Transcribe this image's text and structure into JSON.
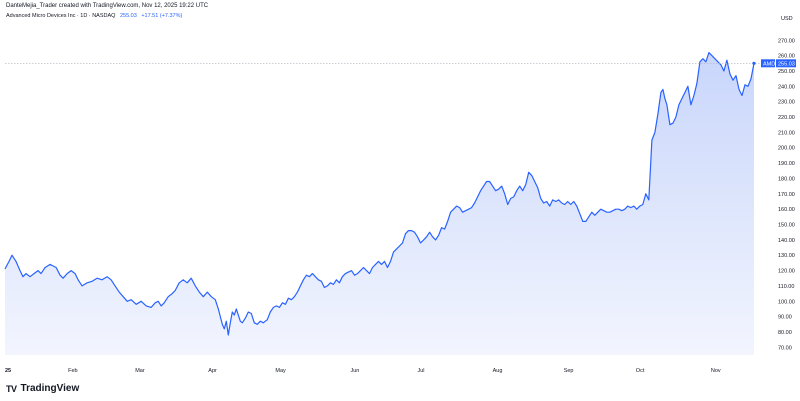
{
  "header": {
    "credit": "DanteMejia_Trader created with TradingView.com, Nov 12, 2025 19:22 UTC"
  },
  "legend": {
    "symbol_line": "Advanced Micro Devices Inc · 1D · NASDAQ",
    "last_price": "255.03",
    "change": "+17.51 (+7.37%)"
  },
  "currency": "USD",
  "brand": {
    "logo": "TV",
    "name": "TradingView"
  },
  "colors": {
    "line": "#2962ff",
    "fill_top": "#c9d6fb",
    "fill_bottom": "#f2f5fe",
    "axis_text": "#131722",
    "price_label_bg": "#2962ff"
  },
  "chart_data": {
    "type": "area",
    "series": [
      {
        "name": "AMD",
        "points": [
          [
            0,
            121
          ],
          [
            4,
            126
          ],
          [
            7,
            130
          ],
          [
            11,
            126
          ],
          [
            15,
            120
          ],
          [
            18,
            116
          ],
          [
            21,
            118
          ],
          [
            25,
            116
          ],
          [
            29,
            118
          ],
          [
            33,
            120
          ],
          [
            36,
            118
          ],
          [
            40,
            122
          ],
          [
            45,
            124
          ],
          [
            51,
            122
          ],
          [
            55,
            117
          ],
          [
            58,
            115
          ],
          [
            62,
            118
          ],
          [
            66,
            120
          ],
          [
            70,
            118
          ],
          [
            73,
            114
          ],
          [
            77,
            110
          ],
          [
            82,
            112
          ],
          [
            87,
            113
          ],
          [
            92,
            115
          ],
          [
            97,
            114
          ],
          [
            102,
            116
          ],
          [
            106,
            114
          ],
          [
            110,
            110
          ],
          [
            114,
            106
          ],
          [
            118,
            103
          ],
          [
            122,
            100
          ],
          [
            126,
            101
          ],
          [
            131,
            98
          ],
          [
            136,
            100
          ],
          [
            141,
            97
          ],
          [
            146,
            96
          ],
          [
            150,
            99
          ],
          [
            153,
            100
          ],
          [
            156,
            97
          ],
          [
            159,
            99
          ],
          [
            163,
            103
          ],
          [
            167,
            105
          ],
          [
            170,
            107
          ],
          [
            174,
            112
          ],
          [
            178,
            114
          ],
          [
            182,
            112
          ],
          [
            186,
            115
          ],
          [
            190,
            110
          ],
          [
            194,
            106
          ],
          [
            198,
            103
          ],
          [
            202,
            106
          ],
          [
            206,
            103
          ],
          [
            210,
            101
          ],
          [
            213,
            95
          ],
          [
            215,
            90
          ],
          [
            217,
            85
          ],
          [
            219,
            82
          ],
          [
            221,
            87
          ],
          [
            223,
            78
          ],
          [
            225,
            86
          ],
          [
            227,
            93
          ],
          [
            229,
            91
          ],
          [
            231,
            95
          ],
          [
            233,
            91
          ],
          [
            235,
            87
          ],
          [
            237,
            86
          ],
          [
            240,
            89
          ],
          [
            243,
            93
          ],
          [
            246,
            92
          ],
          [
            249,
            86
          ],
          [
            252,
            85
          ],
          [
            255,
            87
          ],
          [
            258,
            86
          ],
          [
            262,
            88
          ],
          [
            265,
            93
          ],
          [
            268,
            96
          ],
          [
            271,
            97
          ],
          [
            274,
            96
          ],
          [
            277,
            99
          ],
          [
            280,
            98
          ],
          [
            283,
            102
          ],
          [
            286,
            101
          ],
          [
            289,
            103
          ],
          [
            292,
            106
          ],
          [
            295,
            110
          ],
          [
            298,
            114
          ],
          [
            301,
            117
          ],
          [
            304,
            116
          ],
          [
            307,
            118
          ],
          [
            310,
            116
          ],
          [
            313,
            114
          ],
          [
            316,
            113
          ],
          [
            319,
            109
          ],
          [
            322,
            110
          ],
          [
            325,
            112
          ],
          [
            328,
            111
          ],
          [
            331,
            114
          ],
          [
            334,
            112
          ],
          [
            337,
            116
          ],
          [
            340,
            118
          ],
          [
            343,
            119
          ],
          [
            346,
            120
          ],
          [
            349,
            117
          ],
          [
            352,
            118
          ],
          [
            355,
            120
          ],
          [
            358,
            122
          ],
          [
            361,
            120
          ],
          [
            364,
            118
          ],
          [
            367,
            122
          ],
          [
            370,
            124
          ],
          [
            373,
            126
          ],
          [
            376,
            124
          ],
          [
            379,
            126
          ],
          [
            382,
            122
          ],
          [
            385,
            126
          ],
          [
            388,
            132
          ],
          [
            391,
            134
          ],
          [
            394,
            136
          ],
          [
            397,
            138
          ],
          [
            400,
            144
          ],
          [
            403,
            146
          ],
          [
            406,
            146
          ],
          [
            409,
            145
          ],
          [
            412,
            142
          ],
          [
            415,
            138
          ],
          [
            418,
            140
          ],
          [
            421,
            142
          ],
          [
            424,
            145
          ],
          [
            427,
            142
          ],
          [
            430,
            140
          ],
          [
            433,
            143
          ],
          [
            436,
            148
          ],
          [
            439,
            147
          ],
          [
            442,
            152
          ],
          [
            445,
            158
          ],
          [
            448,
            160
          ],
          [
            451,
            162
          ],
          [
            454,
            161
          ],
          [
            457,
            158
          ],
          [
            460,
            159
          ],
          [
            463,
            160
          ],
          [
            466,
            161
          ],
          [
            469,
            164
          ],
          [
            472,
            168
          ],
          [
            475,
            172
          ],
          [
            478,
            175
          ],
          [
            481,
            178
          ],
          [
            484,
            178
          ],
          [
            487,
            175
          ],
          [
            490,
            172
          ],
          [
            493,
            173
          ],
          [
            496,
            175
          ],
          [
            499,
            170
          ],
          [
            502,
            163
          ],
          [
            505,
            167
          ],
          [
            508,
            168
          ],
          [
            511,
            172
          ],
          [
            514,
            175
          ],
          [
            517,
            172
          ],
          [
            520,
            176
          ],
          [
            523,
            184
          ],
          [
            526,
            182
          ],
          [
            529,
            178
          ],
          [
            532,
            174
          ],
          [
            535,
            167
          ],
          [
            538,
            164
          ],
          [
            541,
            165
          ],
          [
            544,
            162
          ],
          [
            547,
            166
          ],
          [
            550,
            165
          ],
          [
            553,
            166
          ],
          [
            556,
            164
          ],
          [
            559,
            163
          ],
          [
            562,
            165
          ],
          [
            565,
            163
          ],
          [
            568,
            165
          ],
          [
            571,
            162
          ],
          [
            574,
            157
          ],
          [
            577,
            152
          ],
          [
            580,
            152
          ],
          [
            583,
            155
          ],
          [
            586,
            158
          ],
          [
            589,
            156
          ],
          [
            592,
            158
          ],
          [
            595,
            160
          ],
          [
            598,
            159
          ],
          [
            601,
            158
          ],
          [
            604,
            158
          ],
          [
            607,
            159
          ],
          [
            610,
            160
          ],
          [
            613,
            160
          ],
          [
            616,
            159
          ],
          [
            619,
            160
          ],
          [
            622,
            162
          ],
          [
            625,
            161
          ],
          [
            628,
            162
          ],
          [
            631,
            160
          ],
          [
            634,
            162
          ],
          [
            637,
            163
          ],
          [
            640,
            170
          ],
          [
            643,
            166
          ],
          [
            646,
            205
          ],
          [
            649,
            210
          ],
          [
            652,
            222
          ],
          [
            655,
            236
          ],
          [
            657,
            238
          ],
          [
            659,
            232
          ],
          [
            661,
            228
          ],
          [
            664,
            215
          ],
          [
            667,
            216
          ],
          [
            670,
            220
          ],
          [
            673,
            228
          ],
          [
            676,
            232
          ],
          [
            679,
            236
          ],
          [
            682,
            240
          ],
          [
            685,
            228
          ],
          [
            688,
            234
          ],
          [
            691,
            242
          ],
          [
            694,
            256
          ],
          [
            697,
            258
          ],
          [
            700,
            256
          ],
          [
            703,
            262
          ],
          [
            706,
            260
          ],
          [
            709,
            258
          ],
          [
            712,
            256
          ],
          [
            715,
            254
          ],
          [
            718,
            250
          ],
          [
            721,
            257
          ],
          [
            724,
            248
          ],
          [
            727,
            244
          ],
          [
            730,
            247
          ],
          [
            733,
            238
          ],
          [
            736,
            234
          ],
          [
            739,
            241
          ],
          [
            742,
            240
          ],
          [
            745,
            245
          ],
          [
            748,
            255
          ]
        ]
      }
    ],
    "y_ticks": [
      "270.00",
      "260.00",
      "250.00",
      "240.00",
      "230.00",
      "220.00",
      "210.00",
      "200.00",
      "190.00",
      "180.00",
      "170.00",
      "160.00",
      "150.00",
      "140.00",
      "130.00",
      "120.00",
      "110.00",
      "100.00",
      "90.00",
      "80.00",
      "70.00"
    ],
    "x_ticks": [
      "25",
      "Feb",
      "Mar",
      "Apr",
      "May",
      "Jun",
      "Jul",
      "Aug",
      "Sep",
      "Oct",
      "Nov"
    ],
    "ylim": [
      65,
      278
    ],
    "last_value_label": "AMD",
    "last_value": "255.03",
    "title": "",
    "xlabel": "",
    "ylabel": ""
  }
}
